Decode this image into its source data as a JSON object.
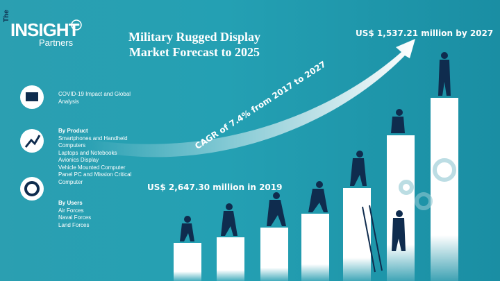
{
  "logo": {
    "prefix": "The",
    "name": "INSIGHT",
    "sub": "Partners"
  },
  "title": [
    "Military Rugged Display",
    "Market Forecast to 2025"
  ],
  "forecast_label": "US$ 1,537.21 million by 2027",
  "base_label": "US$ 2,647.30 million in 2019",
  "cagr_label": "CAGR of 7.4% from 2017 to 2027",
  "sections": [
    {
      "text": "COVID-19 Impact and Global Analysis"
    },
    {
      "heading": "By Product",
      "items": [
        "Smartphones and Handheld Computers",
        "Laptops and Notebooks",
        "Avionics Display",
        "Vehicle Mounted Computer",
        "Panel PC and Mission Critical Computer"
      ]
    },
    {
      "heading": "By Users",
      "items": [
        "Air Forces",
        "Naval Forces",
        "Land Forces"
      ]
    }
  ]
}
